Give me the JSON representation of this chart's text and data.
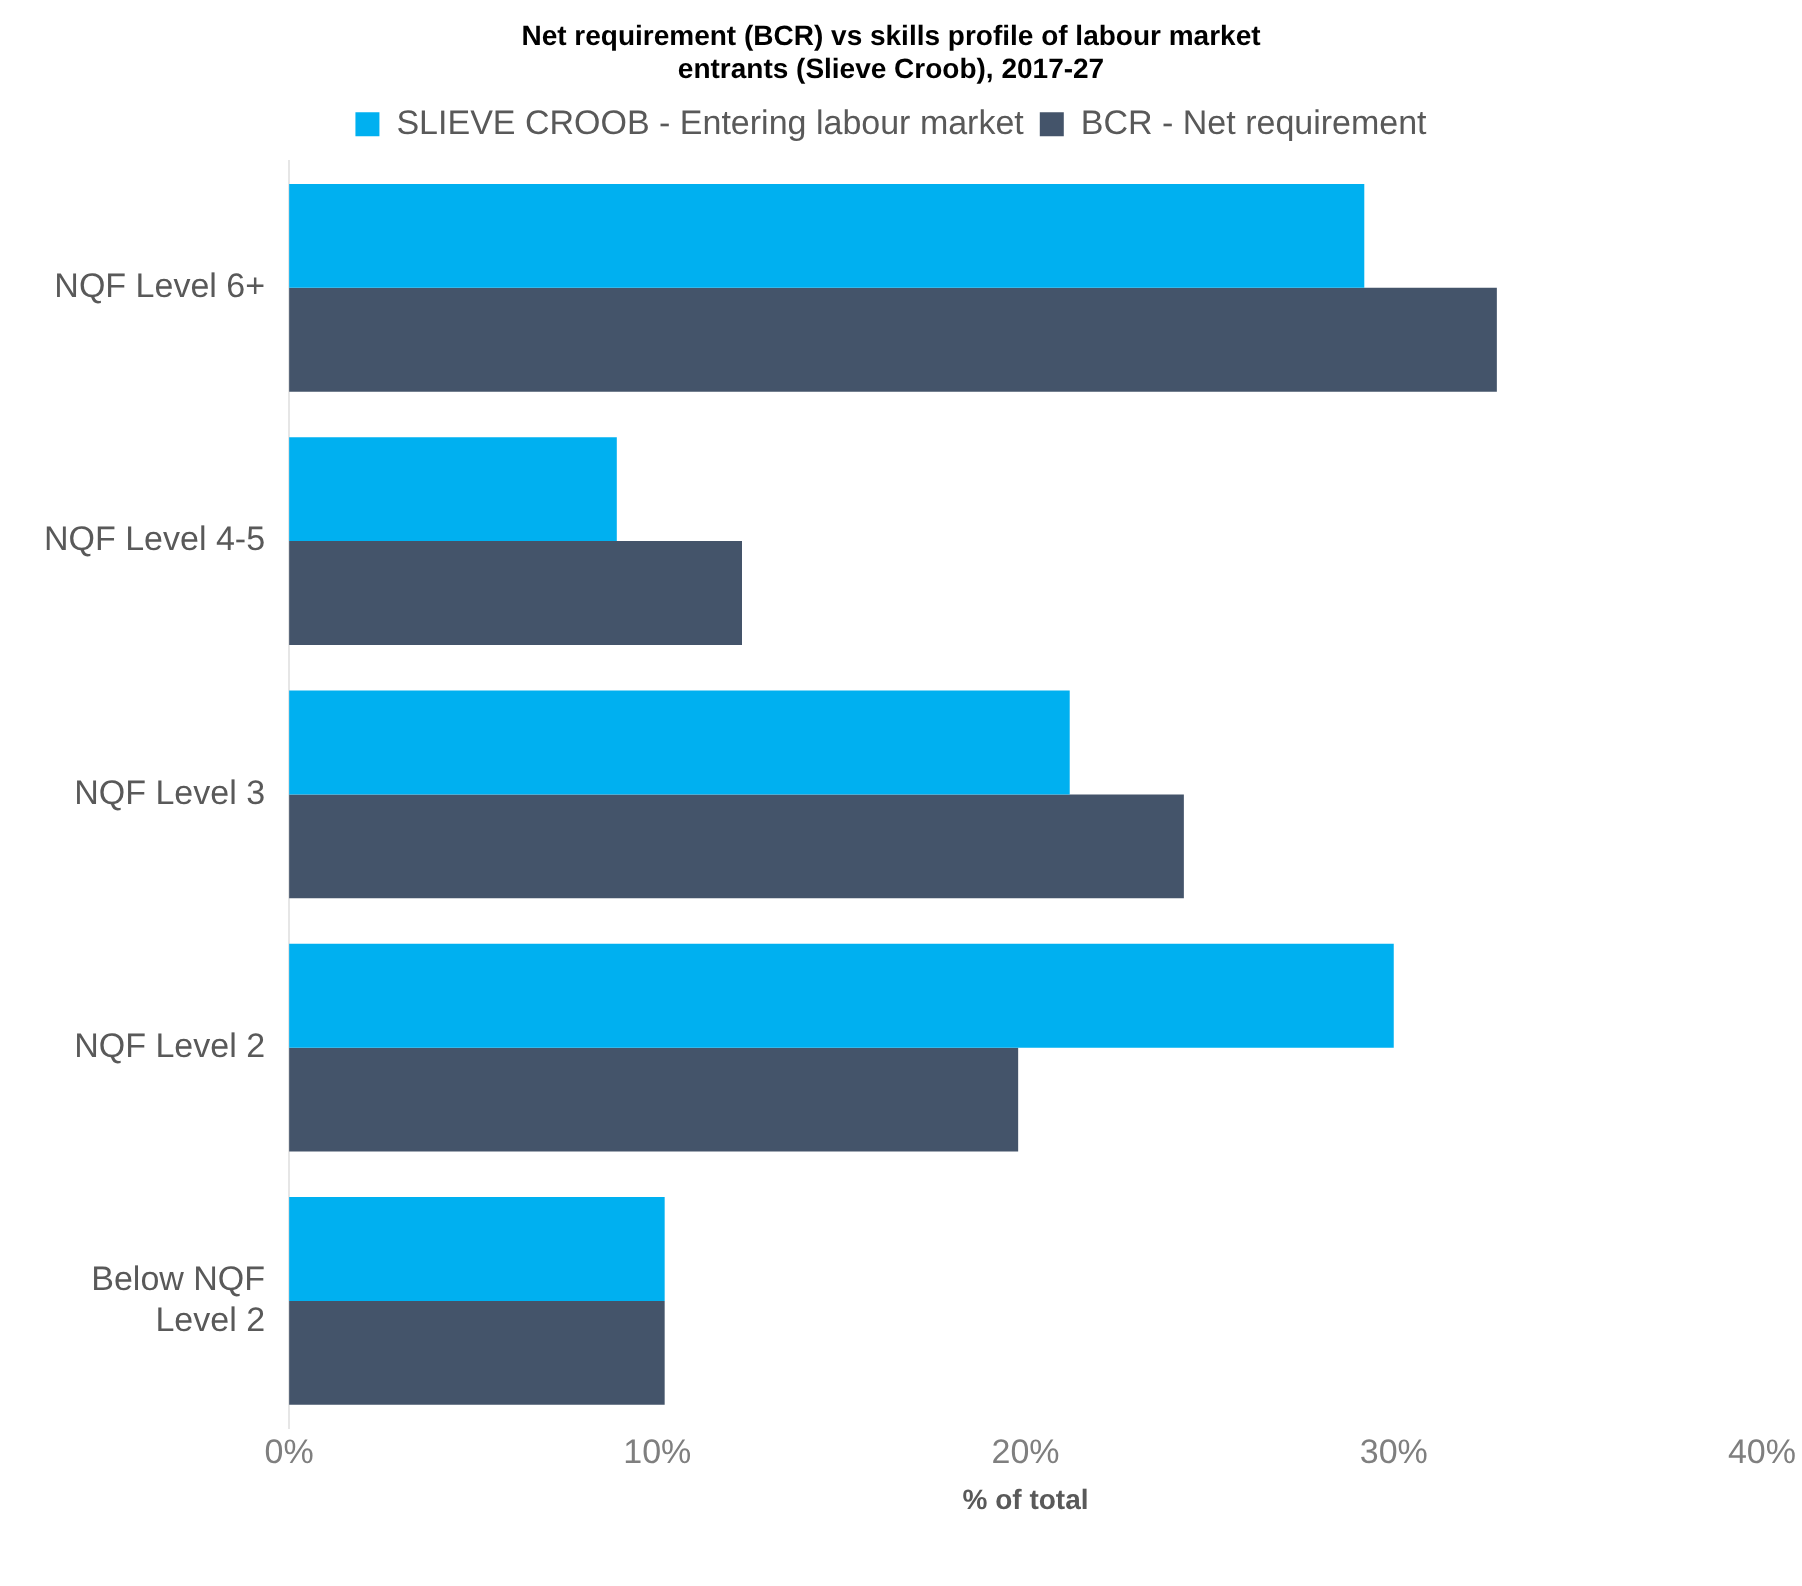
{
  "chart_data": {
    "type": "bar",
    "orientation": "horizontal",
    "title": [
      "Net requirement (BCR) vs skills profile of labour market",
      "entrants (Slieve Croob), 2017-27"
    ],
    "xlabel": "% of total",
    "categories": [
      "NQF Level 6+",
      "NQF Level 4-5",
      "NQF Level 3",
      "NQF Level 2",
      [
        "Below NQF",
        "Level 2"
      ]
    ],
    "series": [
      {
        "name": "SLIEVE CROOB - Entering labour market",
        "color": "#00b0f0",
        "values": [
          29.2,
          8.9,
          21.2,
          30.0,
          10.2
        ]
      },
      {
        "name": "BCR - Net requirement",
        "color": "#44546a",
        "values": [
          32.8,
          12.3,
          24.3,
          19.8,
          10.2
        ]
      }
    ],
    "xlim": [
      0,
      40
    ],
    "xticks": [
      {
        "value": 0,
        "label": "0%"
      },
      {
        "value": 10,
        "label": "10%"
      },
      {
        "value": 20,
        "label": "20%"
      },
      {
        "value": 30,
        "label": "30%"
      },
      {
        "value": 40,
        "label": "40%"
      }
    ],
    "grid": false,
    "legend": "top"
  }
}
